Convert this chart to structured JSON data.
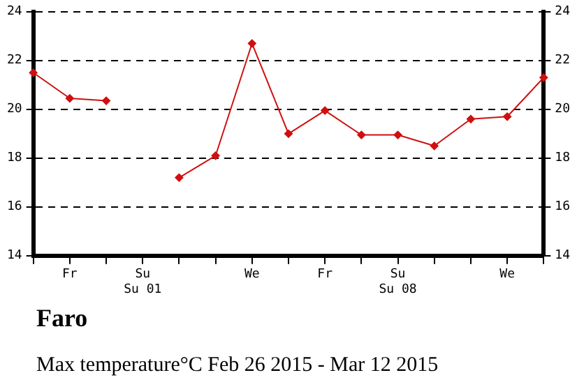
{
  "chart_data": {
    "type": "line",
    "title": "Faro",
    "subtitle": "Max temperature°C Feb 26 2015 - Mar 12 2015",
    "categories": [
      null,
      "Fr",
      null,
      "Su\nSu 01",
      null,
      null,
      "We",
      null,
      "Fr",
      null,
      "Su\nSu 08",
      null,
      null,
      "We",
      null
    ],
    "series": [
      {
        "color": "#d01010",
        "values": [
          21.5,
          20.45,
          20.35,
          null,
          17.2,
          18.1,
          22.7,
          19.0,
          19.95,
          18.95,
          18.95,
          18.5,
          19.6,
          19.7,
          21.3
        ]
      }
    ],
    "ylim": [
      14,
      24
    ],
    "yticks": [
      14,
      16,
      18,
      20,
      22,
      24
    ],
    "y2lim": [
      14,
      24
    ],
    "y2ticks": [
      14,
      16,
      18,
      20,
      22,
      24
    ],
    "grid": "y",
    "legend": false,
    "marker": "diamond",
    "line_style": "solid"
  }
}
